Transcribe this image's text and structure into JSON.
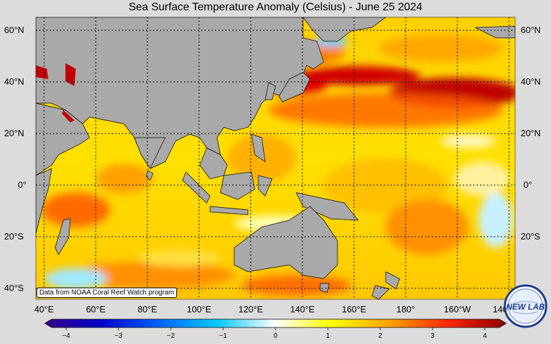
{
  "title": "Sea Surface Temperature Anomaly (Celsius) - June 25 2024",
  "credit": "Data from NOAA Coral Reef Watch program",
  "lat_labels": [
    "60°N",
    "40°N",
    "20°N",
    "0°",
    "20°S",
    "40°S"
  ],
  "lon_labels": [
    "40°E",
    "60°E",
    "80°E",
    "100°E",
    "120°E",
    "140°E",
    "160°E",
    "180°",
    "160°W",
    "140°W"
  ],
  "colorbar": {
    "ticks": [
      "−4",
      "−3",
      "−2",
      "−1",
      "0",
      "1",
      "2",
      "3",
      "4"
    ],
    "colors": [
      "#3a0088",
      "#0000c8",
      "#0064ff",
      "#00c8ff",
      "#ffffff",
      "#ffff00",
      "#ffa000",
      "#ff2800",
      "#8c0000"
    ]
  },
  "logo_text": "NEW LAB",
  "colors": {
    "land": "#a9a9a9",
    "background": "#dcdcdc",
    "grid": "#000000"
  }
}
